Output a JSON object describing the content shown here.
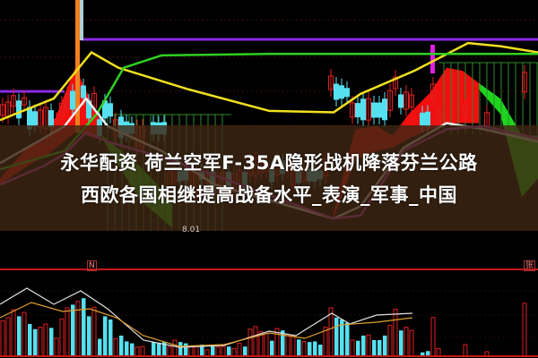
{
  "title": {
    "line1": "永华配资 荷兰空军F-35A隐形战机降落芬兰公路",
    "line2": "西欧各国相继提高战备水平_表演_军事_中国"
  },
  "chart_data": {
    "type": "candlestick",
    "low_label": "8.01",
    "volume_tag_left": "N",
    "volume_tag_right": "张",
    "colors": {
      "up": "#e02020",
      "down": "#55e0f0",
      "ma_yellow": "#f0e020",
      "ma_green": "#30d020",
      "level": "#8a2be2",
      "band_up": "#ff1010",
      "band_down": "#20e020",
      "separator": "#c01818"
    },
    "price_range": [
      7.5,
      15
    ],
    "lines": [
      {
        "color": "yellow",
        "x": [
          0,
          10,
          17,
          22,
          35,
          50,
          62,
          67,
          77,
          87,
          93,
          100
        ],
        "y": [
          11.1,
          11.8,
          13.3,
          12.8,
          12.1,
          11.4,
          11.35,
          11.95,
          12.7,
          13.6,
          13.5,
          13.3
        ]
      },
      {
        "color": "green",
        "x": [
          0,
          12,
          18,
          23,
          30,
          50,
          100
        ],
        "y": [
          9.5,
          10.1,
          11.3,
          12.8,
          13.2,
          13.25,
          13.25
        ]
      },
      {
        "color": "white",
        "x": [
          0,
          8,
          12,
          16,
          20,
          25,
          30,
          40,
          62,
          67,
          75,
          83,
          90,
          100
        ],
        "y": [
          9.7,
          10.5,
          10.9,
          11.8,
          10.9,
          10.5,
          10.1,
          9.0,
          7.9,
          8.3,
          10.2,
          11.0,
          10.8,
          10.4
        ]
      },
      {
        "color": "violet",
        "x": [
          0,
          8,
          12,
          16,
          20,
          28,
          40,
          62,
          67,
          75,
          83,
          90,
          100
        ],
        "y": [
          9.0,
          9.6,
          10.0,
          10.7,
          10.4,
          10.0,
          9.3,
          7.9,
          8.0,
          10.1,
          10.8,
          10.9,
          10.5
        ]
      }
    ],
    "levels": [
      {
        "color": "violet",
        "x": [
          15,
          100
        ],
        "y": 13.72
      },
      {
        "color": "violet",
        "x": [
          0,
          12
        ],
        "y": 12.03
      }
    ],
    "bands": [
      {
        "type": "up",
        "x": [
          0,
          5,
          9,
          14,
          18,
          19
        ],
        "upper": [
          9.2,
          10.2,
          10.6,
          12.8,
          11.3,
          10.9
        ],
        "lower": [
          9.0,
          9.6,
          10.0,
          10.7,
          10.5,
          10.6
        ]
      },
      {
        "type": "down",
        "x": [
          19,
          26,
          32
        ],
        "upper": [
          10.6,
          9.6,
          8.5
        ],
        "lower": [
          10.5,
          8.5,
          7.6
        ]
      },
      {
        "type": "up",
        "x": [
          62,
          66,
          70,
          73,
          76,
          80,
          83,
          86,
          89
        ],
        "upper": [
          8.1,
          10.8,
          10.9,
          10.6,
          11.3,
          12.0,
          12.8,
          12.7,
          12.3
        ],
        "lower": [
          7.9,
          9.8,
          10.1,
          10.2,
          10.5,
          10.8,
          11.0,
          11.0,
          11.0
        ]
      },
      {
        "type": "down",
        "x": [
          89,
          93,
          97,
          100
        ],
        "upper": [
          12.3,
          11.8,
          10.6,
          10.6
        ],
        "lower": [
          12.1,
          11.3,
          8.6,
          9.2
        ]
      }
    ],
    "volume": [
      {
        "x": 0,
        "v": 55,
        "up": true
      },
      {
        "x": 1,
        "v": 60,
        "up": true
      },
      {
        "x": 2,
        "v": 72,
        "up": true
      },
      {
        "x": 3,
        "v": 62,
        "up": false
      },
      {
        "x": 4,
        "v": 68,
        "up": true
      },
      {
        "x": 5,
        "v": 50,
        "up": false
      },
      {
        "x": 6,
        "v": 42,
        "up": false
      },
      {
        "x": 7,
        "v": 45,
        "up": true
      },
      {
        "x": 8,
        "v": 50,
        "up": true
      },
      {
        "x": 9,
        "v": 44,
        "up": false
      },
      {
        "x": 10,
        "v": 28,
        "up": true
      },
      {
        "x": 11,
        "v": 58,
        "up": true
      },
      {
        "x": 12,
        "v": 75,
        "up": true
      },
      {
        "x": 13,
        "v": 80,
        "up": false
      },
      {
        "x": 14,
        "v": 85,
        "up": true
      },
      {
        "x": 15,
        "v": 90,
        "up": false
      },
      {
        "x": 16,
        "v": 62,
        "up": false
      },
      {
        "x": 17,
        "v": 76,
        "up": true
      },
      {
        "x": 18,
        "v": 27,
        "up": false
      },
      {
        "x": 19,
        "v": 62,
        "up": false
      },
      {
        "x": 20,
        "v": 57,
        "up": false
      },
      {
        "x": 21,
        "v": 27,
        "up": true
      },
      {
        "x": 22,
        "v": 32,
        "up": false
      },
      {
        "x": 23,
        "v": 23,
        "up": false
      },
      {
        "x": 24,
        "v": 20,
        "up": false
      },
      {
        "x": 25,
        "v": 14,
        "up": true
      },
      {
        "x": 26,
        "v": 15,
        "up": true
      },
      {
        "x": 28,
        "v": 22,
        "up": false
      },
      {
        "x": 29,
        "v": 21,
        "up": false
      },
      {
        "x": 30,
        "v": 22,
        "up": false
      },
      {
        "x": 31,
        "v": 15,
        "up": true
      },
      {
        "x": 32,
        "v": 25,
        "up": true
      },
      {
        "x": 33,
        "v": 22,
        "up": false
      },
      {
        "x": 34,
        "v": 20,
        "up": false
      },
      {
        "x": 35,
        "v": 15,
        "up": true
      },
      {
        "x": 36,
        "v": 15,
        "up": true
      },
      {
        "x": 37,
        "v": 18,
        "up": false
      },
      {
        "x": 38,
        "v": 10,
        "up": true
      },
      {
        "x": 39,
        "v": 16,
        "up": false
      },
      {
        "x": 40,
        "v": 14,
        "up": true
      },
      {
        "x": 41,
        "v": 15,
        "up": true
      },
      {
        "x": 42,
        "v": 15,
        "up": false
      },
      {
        "x": 43,
        "v": 12,
        "up": true
      },
      {
        "x": 44,
        "v": 20,
        "up": true
      },
      {
        "x": 45,
        "v": 15,
        "up": false
      },
      {
        "x": 46,
        "v": 42,
        "up": true
      },
      {
        "x": 47,
        "v": 46,
        "up": true
      },
      {
        "x": 48,
        "v": 38,
        "up": true
      },
      {
        "x": 49,
        "v": 35,
        "up": true
      },
      {
        "x": 50,
        "v": 24,
        "up": false
      },
      {
        "x": 51,
        "v": 43,
        "up": true
      },
      {
        "x": 52,
        "v": 40,
        "up": false
      },
      {
        "x": 53,
        "v": 34,
        "up": true
      },
      {
        "x": 54,
        "v": 32,
        "up": true
      },
      {
        "x": 55,
        "v": 26,
        "up": false
      },
      {
        "x": 56,
        "v": 23,
        "up": true
      },
      {
        "x": 57,
        "v": 22,
        "up": false
      },
      {
        "x": 58,
        "v": 23,
        "up": false
      },
      {
        "x": 59,
        "v": 18,
        "up": false
      },
      {
        "x": 60,
        "v": 45,
        "up": true
      },
      {
        "x": 61,
        "v": 75,
        "up": true
      },
      {
        "x": 62,
        "v": 60,
        "up": false
      },
      {
        "x": 63,
        "v": 57,
        "up": false
      },
      {
        "x": 64,
        "v": 52,
        "up": false
      },
      {
        "x": 65,
        "v": 25,
        "up": true
      },
      {
        "x": 66,
        "v": 24,
        "up": false
      },
      {
        "x": 67,
        "v": 32,
        "up": false
      },
      {
        "x": 68,
        "v": 33,
        "up": true
      },
      {
        "x": 69,
        "v": 25,
        "up": false
      },
      {
        "x": 70,
        "v": 25,
        "up": false
      },
      {
        "x": 71,
        "v": 32,
        "up": false
      },
      {
        "x": 72,
        "v": 48,
        "up": true
      },
      {
        "x": 73,
        "v": 73,
        "up": true
      },
      {
        "x": 74,
        "v": 40,
        "up": false
      },
      {
        "x": 75,
        "v": 45,
        "up": true
      },
      {
        "x": 76,
        "v": 40,
        "up": true
      },
      {
        "x": 78,
        "v": 6,
        "up": false
      },
      {
        "x": 79,
        "v": 8,
        "up": false
      },
      {
        "x": 80,
        "v": 60,
        "up": true
      },
      {
        "x": 81,
        "v": 12,
        "up": true
      },
      {
        "x": 86,
        "v": 18,
        "up": true
      },
      {
        "x": 90,
        "v": 7,
        "up": true
      },
      {
        "x": 97,
        "v": 82,
        "up": true
      }
    ]
  }
}
